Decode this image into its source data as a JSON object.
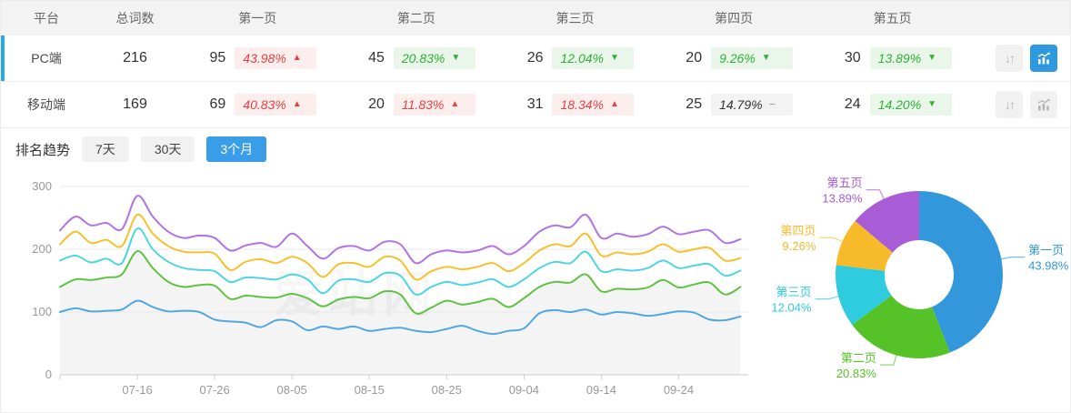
{
  "table": {
    "headers": {
      "platform": "平台",
      "total": "总词数",
      "pages": [
        "第一页",
        "第二页",
        "第三页",
        "第四页",
        "第五页"
      ]
    },
    "rows": [
      {
        "platform": "PC端",
        "total": "216",
        "selected": true,
        "pages": [
          {
            "count": "95",
            "percent": "43.98%",
            "direction": "up",
            "tone": "red"
          },
          {
            "count": "45",
            "percent": "20.83%",
            "direction": "down",
            "tone": "green"
          },
          {
            "count": "26",
            "percent": "12.04%",
            "direction": "down",
            "tone": "green"
          },
          {
            "count": "20",
            "percent": "9.26%",
            "direction": "down",
            "tone": "green"
          },
          {
            "count": "30",
            "percent": "13.89%",
            "direction": "down",
            "tone": "green"
          }
        ]
      },
      {
        "platform": "移动端",
        "total": "169",
        "selected": false,
        "pages": [
          {
            "count": "69",
            "percent": "40.83%",
            "direction": "up",
            "tone": "red"
          },
          {
            "count": "20",
            "percent": "11.83%",
            "direction": "up",
            "tone": "red"
          },
          {
            "count": "31",
            "percent": "18.34%",
            "direction": "up",
            "tone": "red"
          },
          {
            "count": "25",
            "percent": "14.79%",
            "direction": "flat",
            "tone": "gray"
          },
          {
            "count": "24",
            "percent": "14.20%",
            "direction": "down",
            "tone": "green"
          }
        ]
      }
    ]
  },
  "trend": {
    "title": "排名趋势",
    "tabs": [
      {
        "label": "7天",
        "active": false
      },
      {
        "label": "30天",
        "active": false
      },
      {
        "label": "3个月",
        "active": true
      }
    ]
  },
  "watermark": "爱站网",
  "colors": {
    "accent_blue": "#2f99e0",
    "selected_row_bar": "#2ca9e1",
    "badge_red": "#e64242",
    "badge_green": "#2eb135"
  },
  "chart_data": [
    {
      "type": "line",
      "title": "排名趋势 3个月",
      "x_tick_labels": [
        "07-16",
        "07-26",
        "08-05",
        "08-15",
        "08-25",
        "09-04",
        "09-14",
        "09-24"
      ],
      "x_tick_days": [
        10,
        20,
        30,
        40,
        50,
        60,
        70,
        80
      ],
      "days_total": 89,
      "sample_step": 2,
      "ylim": [
        0,
        300
      ],
      "yticks": [
        0,
        100,
        200,
        300
      ],
      "grid": true,
      "legend": false,
      "series": [
        {
          "name": "第一页",
          "color": "#52a7e0",
          "values": [
            100,
            106,
            101,
            102,
            104,
            118,
            108,
            101,
            102,
            100,
            88,
            85,
            83,
            76,
            87,
            85,
            71,
            77,
            73,
            77,
            70,
            73,
            75,
            70,
            68,
            73,
            78,
            70,
            65,
            70,
            74,
            98,
            103,
            100,
            104,
            96,
            100,
            98,
            94,
            97,
            101,
            99,
            88,
            87,
            93
          ]
        },
        {
          "name": "第二页",
          "color": "#5fc243",
          "area_fill": "rgba(0,0,0,0.045)",
          "values": [
            140,
            152,
            151,
            155,
            160,
            197,
            170,
            148,
            140,
            143,
            142,
            121,
            126,
            124,
            123,
            129,
            122,
            109,
            120,
            124,
            122,
            133,
            128,
            98,
            107,
            118,
            112,
            116,
            121,
            108,
            122,
            140,
            148,
            147,
            160,
            133,
            137,
            136,
            139,
            151,
            139,
            144,
            147,
            128,
            140
          ]
        },
        {
          "name": "第三页",
          "color": "#4ed5e0",
          "values": [
            182,
            190,
            179,
            185,
            178,
            233,
            200,
            180,
            170,
            167,
            165,
            148,
            155,
            154,
            152,
            160,
            152,
            130,
            150,
            152,
            148,
            162,
            158,
            128,
            140,
            148,
            143,
            147,
            152,
            140,
            152,
            170,
            180,
            178,
            196,
            165,
            168,
            166,
            170,
            182,
            170,
            174,
            176,
            158,
            166
          ]
        },
        {
          "name": "第四页",
          "color": "#f7c12e",
          "values": [
            208,
            228,
            210,
            215,
            205,
            255,
            225,
            205,
            196,
            195,
            193,
            167,
            180,
            184,
            178,
            188,
            178,
            156,
            176,
            178,
            172,
            188,
            182,
            152,
            165,
            172,
            168,
            172,
            178,
            165,
            178,
            198,
            208,
            205,
            225,
            190,
            195,
            192,
            196,
            208,
            196,
            200,
            202,
            182,
            186
          ]
        },
        {
          "name": "第五页",
          "color": "#b273e3",
          "values": [
            230,
            252,
            238,
            242,
            232,
            285,
            252,
            228,
            218,
            222,
            218,
            198,
            206,
            210,
            204,
            225,
            205,
            185,
            202,
            205,
            198,
            212,
            208,
            178,
            192,
            198,
            195,
            198,
            205,
            192,
            205,
            228,
            238,
            235,
            255,
            218,
            225,
            220,
            224,
            236,
            224,
            228,
            230,
            210,
            216
          ]
        }
      ]
    },
    {
      "type": "pie",
      "donut": true,
      "labels": [
        "第一页",
        "第二页",
        "第三页",
        "第四页",
        "第五页"
      ],
      "values": [
        43.98,
        20.83,
        12.04,
        9.26,
        13.89
      ],
      "unit": "%",
      "colors": [
        "#3398db",
        "#55c327",
        "#2fcbde",
        "#f7ba2a",
        "#a85cd6"
      ],
      "start_angle": "top",
      "direction": "clockwise"
    }
  ]
}
